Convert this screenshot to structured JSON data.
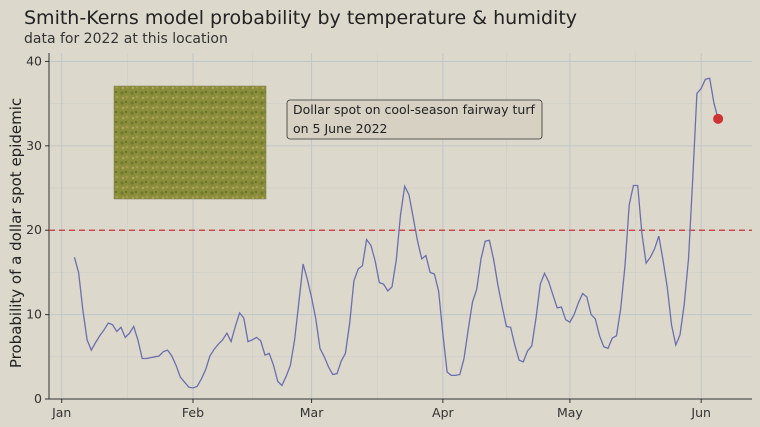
{
  "chart_data": {
    "type": "line",
    "title": "Smith-Kerns model probability by temperature & humidity",
    "subtitle": "data for 2022 at this location",
    "xlabel": "",
    "ylabel": "Probability of a dollar spot epidemic",
    "x_ticks": [
      "Jan",
      "Feb",
      "Mar",
      "Apr",
      "May",
      "Jun"
    ],
    "x_tick_days": [
      0,
      31,
      59,
      90,
      120,
      151
    ],
    "xlim": [
      -3,
      163
    ],
    "ylim": [
      0,
      41
    ],
    "y_ticks": [
      0,
      10,
      20,
      30,
      40
    ],
    "grid": true,
    "threshold": 20,
    "line_color": "#6a6fae",
    "threshold_color": "#cc3333",
    "marker_color": "#cc3333",
    "annotation": {
      "lines": [
        "Dollar spot on cool-season fairway turf",
        "on 5 June 2022"
      ]
    },
    "highlight_point": {
      "x": 155,
      "y": 33.2
    },
    "series": [
      {
        "x": [
          3,
          4,
          5,
          6,
          7,
          8,
          9,
          10,
          11,
          12,
          13,
          14,
          15,
          16,
          17,
          18,
          19,
          20,
          21,
          22,
          23,
          24,
          25,
          26,
          27,
          28,
          29,
          30,
          31,
          32,
          33,
          34,
          35,
          36,
          37,
          38,
          39,
          40,
          41,
          42,
          43,
          44,
          45,
          46,
          47,
          48,
          49,
          50,
          51,
          52,
          53,
          54,
          55,
          56,
          57,
          58,
          59,
          60,
          61,
          62,
          63,
          64,
          65,
          66,
          67,
          68,
          69,
          70,
          71,
          72,
          73,
          74,
          75,
          76,
          77,
          78,
          79,
          80,
          81,
          82,
          83,
          84,
          85,
          86,
          87,
          88,
          89,
          90,
          91,
          92,
          93,
          94,
          95,
          96,
          97,
          98,
          99,
          100,
          101,
          102,
          103,
          104,
          105,
          106,
          107,
          108,
          109,
          110,
          111,
          112,
          113,
          114,
          115,
          116,
          117,
          118,
          119,
          120,
          121,
          122,
          123,
          124,
          125,
          126,
          127,
          128,
          129,
          130,
          131,
          132,
          133,
          134,
          135,
          136,
          137,
          138,
          139,
          140,
          141,
          142,
          143,
          144,
          145,
          146,
          147,
          148,
          149,
          150,
          151,
          152,
          153,
          154,
          155
        ],
        "y": [
          16.8,
          15.0,
          10.5,
          7.0,
          5.8,
          6.7,
          7.5,
          8.2,
          9.0,
          8.8,
          8.0,
          8.5,
          7.3,
          7.8,
          8.6,
          7.0,
          4.8,
          4.8,
          4.9,
          5.0,
          5.1,
          5.6,
          5.8,
          5.1,
          4.0,
          2.6,
          2.0,
          1.4,
          1.3,
          1.5,
          2.4,
          3.5,
          5.1,
          5.9,
          6.5,
          7.0,
          7.8,
          6.8,
          8.6,
          10.2,
          9.6,
          6.8,
          7.0,
          7.3,
          6.9,
          5.2,
          5.4,
          4.0,
          2.1,
          1.6,
          2.7,
          4.0,
          7.0,
          11.5,
          16.0,
          14.2,
          12.0,
          9.5,
          6.0,
          5.0,
          3.8,
          2.9,
          3.0,
          4.5,
          5.4,
          9.0,
          14.0,
          15.4,
          15.8,
          18.9,
          18.2,
          16.4,
          13.8,
          13.6,
          12.8,
          13.3,
          16.5,
          21.8,
          25.2,
          24.2,
          21.5,
          18.8,
          16.6,
          17.0,
          15.0,
          14.8,
          12.8,
          7.8,
          3.2,
          2.8,
          2.8,
          2.9,
          4.8,
          8.3,
          11.5,
          13.0,
          16.6,
          18.7,
          18.8,
          16.5,
          13.5,
          11.0,
          8.6,
          8.5,
          6.4,
          4.6,
          4.4,
          5.7,
          6.3,
          9.6,
          13.6,
          14.9,
          13.9,
          12.3,
          10.8,
          10.9,
          9.4,
          9.1,
          10.0,
          11.4,
          12.5,
          12.1,
          10.0,
          9.5,
          7.5,
          6.2,
          6.0,
          7.2,
          7.5,
          10.7,
          15.8,
          23.0,
          25.3,
          25.3,
          19.6,
          16.1,
          16.8,
          17.8,
          19.3,
          16.4,
          13.2,
          8.8,
          6.4,
          7.6,
          11.2,
          16.6,
          26.0,
          36.2,
          36.8,
          37.9,
          38.0,
          35.1,
          33.2
        ]
      }
    ]
  }
}
